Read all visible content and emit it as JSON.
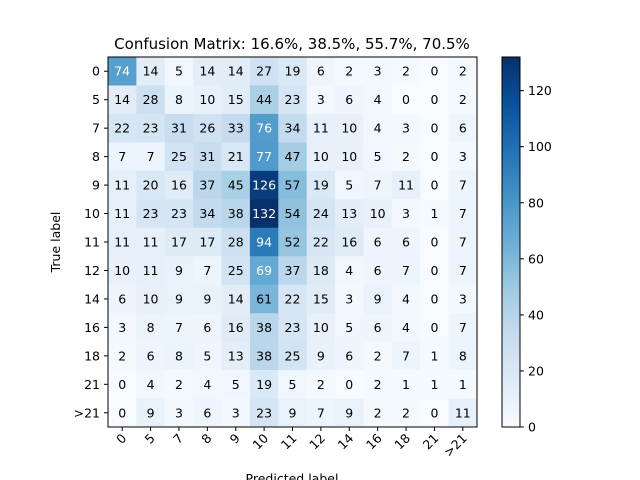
{
  "chart_data": {
    "type": "heatmap",
    "title": "Confusion Matrix: 16.6%, 38.5%, 55.7%, 70.5%",
    "xlabel": "Predicted label",
    "ylabel": "True label",
    "x_categories": [
      "0",
      "5",
      "7",
      "8",
      "9",
      "10",
      "11",
      "12",
      "14",
      "16",
      "18",
      "21",
      ">21"
    ],
    "y_categories": [
      "0",
      "5",
      "7",
      "8",
      "9",
      "10",
      "11",
      "12",
      "14",
      "16",
      "18",
      "21",
      ">21"
    ],
    "matrix": [
      [
        74,
        14,
        5,
        14,
        14,
        27,
        19,
        6,
        2,
        3,
        2,
        0,
        2
      ],
      [
        14,
        28,
        8,
        10,
        15,
        44,
        23,
        3,
        6,
        4,
        0,
        0,
        2
      ],
      [
        22,
        23,
        31,
        26,
        33,
        76,
        34,
        11,
        10,
        4,
        3,
        0,
        6
      ],
      [
        7,
        7,
        25,
        31,
        21,
        77,
        47,
        10,
        10,
        5,
        2,
        0,
        3
      ],
      [
        11,
        20,
        16,
        37,
        45,
        126,
        57,
        19,
        5,
        7,
        11,
        0,
        7
      ],
      [
        11,
        23,
        23,
        34,
        38,
        132,
        54,
        24,
        13,
        10,
        3,
        1,
        7
      ],
      [
        11,
        11,
        17,
        17,
        28,
        94,
        52,
        22,
        16,
        6,
        6,
        0,
        7
      ],
      [
        10,
        11,
        9,
        7,
        25,
        69,
        37,
        18,
        4,
        6,
        7,
        0,
        7
      ],
      [
        6,
        10,
        9,
        9,
        14,
        61,
        22,
        15,
        3,
        9,
        4,
        0,
        3
      ],
      [
        3,
        8,
        7,
        6,
        16,
        38,
        23,
        10,
        5,
        6,
        4,
        0,
        7
      ],
      [
        2,
        6,
        8,
        5,
        13,
        38,
        25,
        9,
        6,
        2,
        7,
        1,
        8
      ],
      [
        0,
        4,
        2,
        4,
        5,
        19,
        5,
        2,
        0,
        2,
        1,
        1,
        1
      ],
      [
        0,
        9,
        3,
        6,
        3,
        23,
        9,
        7,
        9,
        2,
        2,
        0,
        11
      ]
    ],
    "colorscale": "Blues",
    "vmin": 0,
    "vmax": 132,
    "colorbar_ticks": [
      0,
      20,
      40,
      60,
      80,
      100,
      120
    ],
    "grid": false
  }
}
